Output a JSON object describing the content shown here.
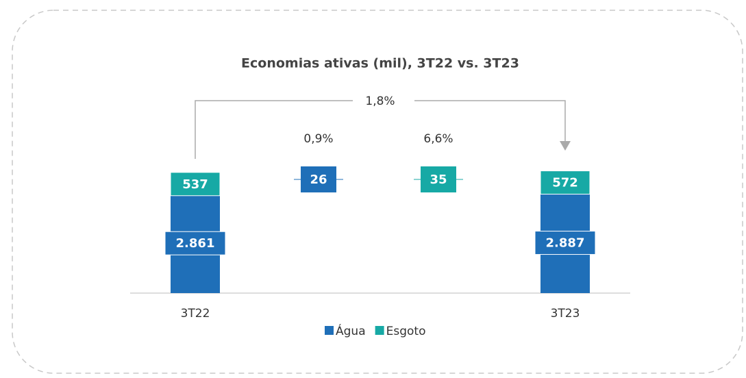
{
  "chart_data": {
    "type": "waterfall",
    "title": "Economias ativas (mil), 3T22 vs. 3T23",
    "categories": [
      "3T22",
      null,
      null,
      "3T23"
    ],
    "series": [
      {
        "name": "Água",
        "color": "#1f6fb8",
        "values": [
          2861,
          26,
          null,
          2887
        ],
        "value_labels": [
          "2.861",
          "26",
          null,
          "2.887"
        ]
      },
      {
        "name": "Esgoto",
        "color": "#17a9a5",
        "values": [
          537,
          null,
          35,
          572
        ],
        "value_labels": [
          "537",
          null,
          "35",
          "572"
        ]
      }
    ],
    "annotations": [
      "1,8%",
      "0,9%",
      "6,6%"
    ],
    "legend": "bottom"
  }
}
